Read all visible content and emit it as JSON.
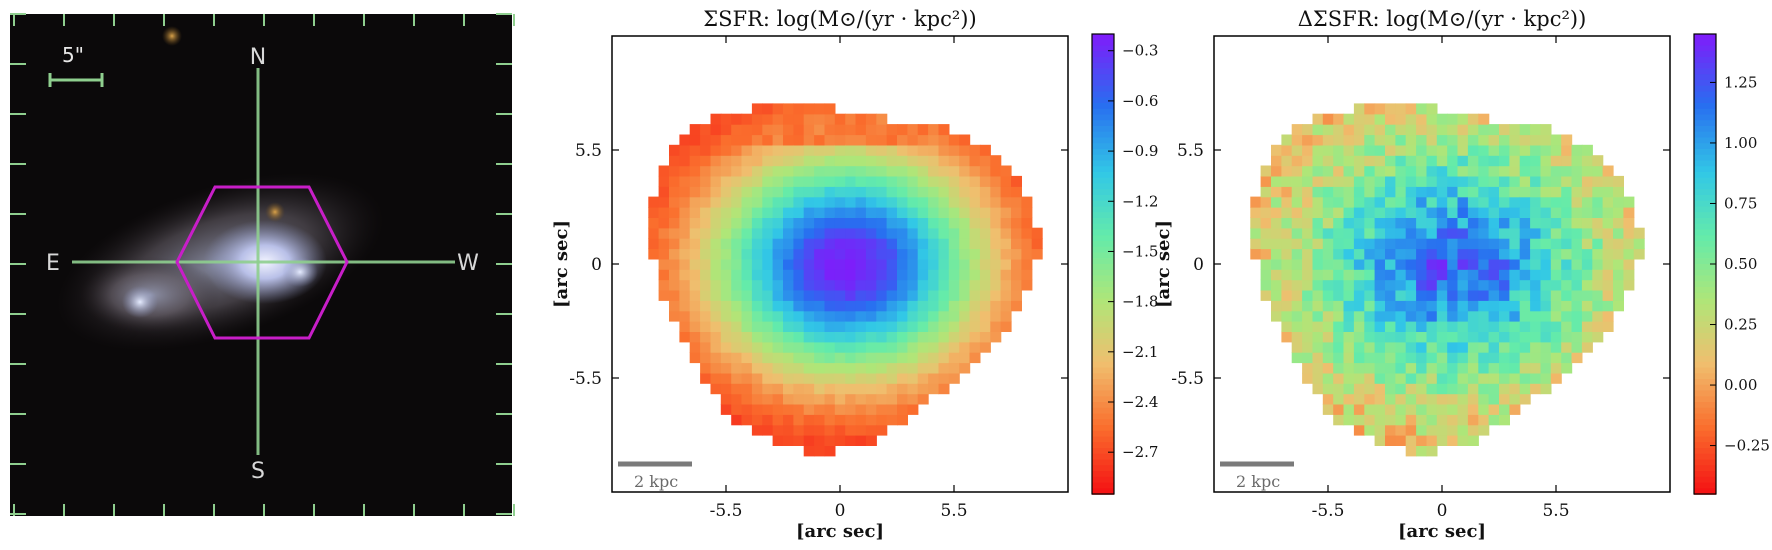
{
  "image_panel": {
    "scale_label": "5\"",
    "compass": {
      "north": "N",
      "south": "S",
      "east": "E",
      "west": "W"
    }
  },
  "colors": {
    "background": "#ffffff",
    "hexagon": "#c81ec8",
    "crosshair": "#8fcf8f",
    "scalebar": "#7a7a7a"
  },
  "chart_data": [
    {
      "type": "heatmap",
      "title": "ΣSFR: log(M⊙/(yr · kpc²))",
      "xlabel": "[arc sec]",
      "ylabel": "[arc sec]",
      "x_ticks": [
        "-5.5",
        "0",
        "5.5"
      ],
      "y_ticks": [
        "5.5",
        "0",
        "-5.5"
      ],
      "tick_values": [
        -5.5,
        0,
        5.5
      ],
      "xlim": [
        -11,
        11
      ],
      "ylim": [
        -11,
        11
      ],
      "scalebar_label": "2 kpc",
      "colorbar": {
        "range": [
          -2.95,
          -0.2
        ],
        "ticks": [
          -0.3,
          -0.6,
          -0.9,
          -1.2,
          -1.5,
          -1.8,
          -2.1,
          -2.4,
          -2.7
        ],
        "tick_labels": [
          "−0.3",
          "−0.6",
          "−0.9",
          "−1.2",
          "−1.5",
          "−1.8",
          "−2.1",
          "−2.4",
          "−2.7"
        ]
      },
      "peak": {
        "x": 0.3,
        "y": 0.0,
        "value": -0.2
      },
      "edge_value": -2.95
    },
    {
      "type": "heatmap",
      "title": "ΔΣSFR: log(M⊙/(yr · kpc²))",
      "xlabel": "[arc sec]",
      "ylabel": "[arc sec]",
      "x_ticks": [
        "-5.5",
        "0",
        "5.5"
      ],
      "y_ticks": [
        "5.5",
        "0",
        "-5.5"
      ],
      "tick_values": [
        -5.5,
        0,
        5.5
      ],
      "xlim": [
        -11,
        11
      ],
      "ylim": [
        -11,
        11
      ],
      "scalebar_label": "2 kpc",
      "colorbar": {
        "range": [
          -0.45,
          1.45
        ],
        "ticks": [
          1.25,
          1.0,
          0.75,
          0.5,
          0.25,
          0.0,
          -0.25
        ],
        "tick_labels": [
          "1.25",
          "1.00",
          "0.75",
          "0.50",
          "0.25",
          "0.00",
          "−0.25"
        ]
      },
      "peak": {
        "x": 0.5,
        "y": 0.0,
        "value": 1.2
      },
      "edge_value": 0.05
    }
  ]
}
